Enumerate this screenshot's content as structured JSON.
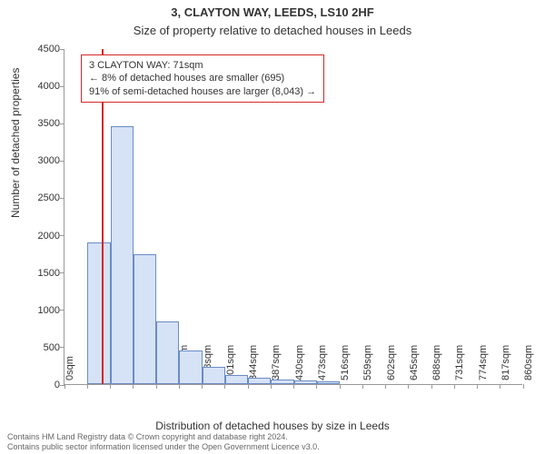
{
  "titles": {
    "main": "3, CLAYTON WAY, LEEDS, LS10 2HF",
    "sub": "Size of property relative to detached houses in Leeds"
  },
  "axes": {
    "y_label": "Number of detached properties",
    "x_label": "Distribution of detached houses by size in Leeds"
  },
  "chart": {
    "type": "histogram",
    "ylim": [
      0,
      4500
    ],
    "ytick_step": 500,
    "x_tick_values": [
      0,
      43,
      86,
      129,
      172,
      215,
      258,
      301,
      344,
      387,
      430,
      473,
      516,
      559,
      602,
      645,
      688,
      731,
      774,
      817,
      860
    ],
    "x_tick_unit": "sqm",
    "bar_fill": "#d6e2f6",
    "bar_border": "#6a8cc5",
    "reference_value": 71,
    "reference_color": "#d62728",
    "bins": [
      {
        "start": 0,
        "end": 43,
        "count": 0
      },
      {
        "start": 43,
        "end": 86,
        "count": 1900
      },
      {
        "start": 86,
        "end": 129,
        "count": 3460
      },
      {
        "start": 129,
        "end": 172,
        "count": 1740
      },
      {
        "start": 172,
        "end": 215,
        "count": 840
      },
      {
        "start": 215,
        "end": 258,
        "count": 450
      },
      {
        "start": 258,
        "end": 301,
        "count": 230
      },
      {
        "start": 301,
        "end": 344,
        "count": 120
      },
      {
        "start": 344,
        "end": 387,
        "count": 80
      },
      {
        "start": 387,
        "end": 430,
        "count": 60
      },
      {
        "start": 430,
        "end": 473,
        "count": 50
      },
      {
        "start": 473,
        "end": 516,
        "count": 40
      }
    ],
    "background_color": "#ffffff",
    "tick_color": "#999999"
  },
  "annotation": {
    "lines": [
      "3 CLAYTON WAY: 71sqm",
      "← 8% of detached houses are smaller (695)",
      "91% of semi-detached houses are larger (8,043) →"
    ]
  },
  "footer": {
    "line1": "Contains HM Land Registry data © Crown copyright and database right 2024.",
    "line2": "Contains public sector information licensed under the Open Government Licence v3.0."
  }
}
